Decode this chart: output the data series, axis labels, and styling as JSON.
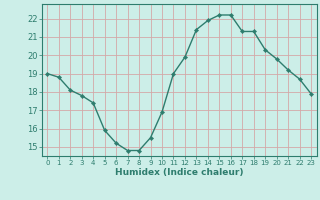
{
  "x": [
    0,
    1,
    2,
    3,
    4,
    5,
    6,
    7,
    8,
    9,
    10,
    11,
    12,
    13,
    14,
    15,
    16,
    17,
    18,
    19,
    20,
    21,
    22,
    23
  ],
  "y": [
    19.0,
    18.8,
    18.1,
    17.8,
    17.4,
    15.9,
    15.2,
    14.8,
    14.8,
    15.5,
    16.9,
    19.0,
    19.9,
    21.4,
    21.9,
    22.2,
    22.2,
    21.3,
    21.3,
    20.3,
    19.8,
    19.2,
    18.7,
    17.9
  ],
  "line_color": "#2e7d6e",
  "marker": "D",
  "marker_size": 2.2,
  "bg_color": "#cceee8",
  "grid_color": "#d4a8a8",
  "axis_color": "#2e7d6e",
  "xlabel": "Humidex (Indice chaleur)",
  "ylim": [
    14.5,
    22.8
  ],
  "xlim": [
    -0.5,
    23.5
  ],
  "yticks": [
    15,
    16,
    17,
    18,
    19,
    20,
    21,
    22
  ],
  "xticks": [
    0,
    1,
    2,
    3,
    4,
    5,
    6,
    7,
    8,
    9,
    10,
    11,
    12,
    13,
    14,
    15,
    16,
    17,
    18,
    19,
    20,
    21,
    22,
    23
  ]
}
